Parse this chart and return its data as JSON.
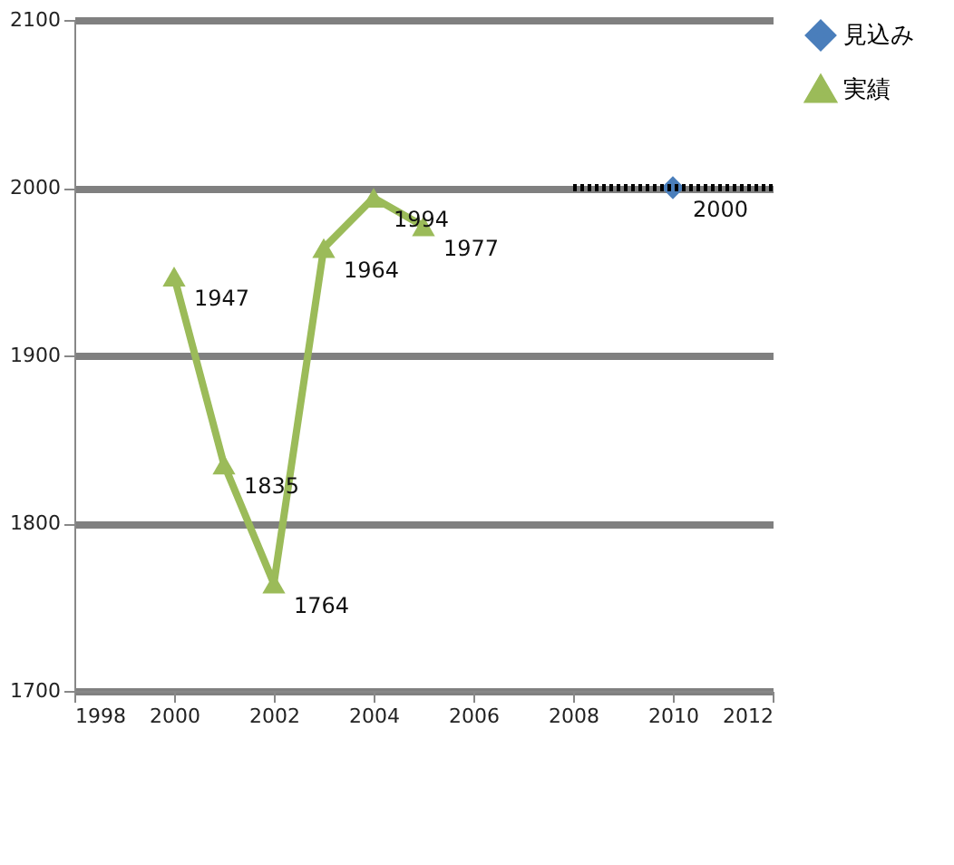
{
  "chart_data": {
    "type": "line",
    "x": [
      2000,
      2001,
      2002,
      2003,
      2004,
      2005
    ],
    "series": [
      {
        "name": "見込み",
        "color": "#4a7ebb",
        "x": [
          2010
        ],
        "values": [
          2000
        ],
        "marker": "diamond",
        "value_labels": [
          "2000"
        ]
      },
      {
        "name": "実績",
        "color": "#9bbb59",
        "values": [
          1947,
          1835,
          1764,
          1964,
          1994,
          1977
        ],
        "marker": "triangle",
        "value_labels": [
          "1947",
          "1835",
          "1764",
          "1964",
          "1994",
          "1977"
        ]
      },
      {
        "color": "#000000",
        "x": [
          2008,
          2012
        ],
        "values": [
          2000,
          2000
        ],
        "marker": "none",
        "line_style": "dotted"
      }
    ],
    "xlim": [
      1998,
      2012
    ],
    "xticks": [
      1998,
      2000,
      2002,
      2004,
      2006,
      2008,
      2010,
      2012
    ],
    "ylim": [
      1700,
      2100
    ],
    "yticks": [
      1700,
      1800,
      1900,
      2000,
      2100
    ],
    "grid": "y",
    "legend": "right",
    "line_style": "solid"
  }
}
